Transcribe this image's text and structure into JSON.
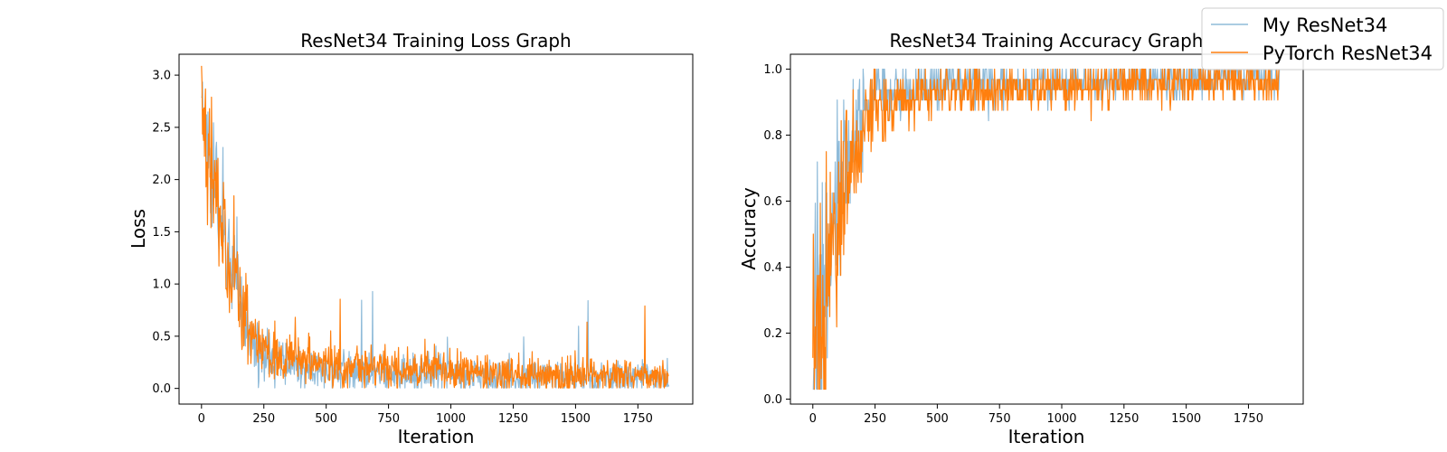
{
  "legend": {
    "entries": [
      {
        "label": "My ResNet34",
        "color": "#1f77b4",
        "alpha": 0.5
      },
      {
        "label": "PyTorch ResNet34",
        "color": "#ff7f0e",
        "alpha": 1.0
      }
    ],
    "placement": "top-right"
  },
  "chart_data": [
    {
      "type": "line",
      "title": "ResNet34 Training Loss Graph",
      "xlabel": "Iteration",
      "ylabel": "Loss",
      "xlim": [
        -90,
        1970
      ],
      "ylim": [
        -0.15,
        3.2
      ],
      "xticks": [
        0,
        250,
        500,
        750,
        1000,
        1250,
        1500,
        1750
      ],
      "yticks": [
        0.0,
        0.5,
        1.0,
        1.5,
        2.0,
        2.5,
        3.0
      ],
      "ytick_labels": [
        "0.0",
        "0.5",
        "1.0",
        "1.5",
        "2.0",
        "2.5",
        "3.0"
      ],
      "grid": false,
      "n_points": 1875,
      "series": [
        {
          "name": "My ResNet34",
          "color": "#1f77b4",
          "alpha": 0.5,
          "x": [
            0,
            25,
            50,
            75,
            100,
            150,
            200,
            250,
            300,
            400,
            500,
            750,
            1000,
            1250,
            1500,
            1750,
            1874
          ],
          "y": [
            2.7,
            2.2,
            2.0,
            1.6,
            1.3,
            0.9,
            0.45,
            0.3,
            0.25,
            0.2,
            0.17,
            0.15,
            0.12,
            0.1,
            0.1,
            0.1,
            0.1
          ]
        },
        {
          "name": "PyTorch ResNet34",
          "color": "#ff7f0e",
          "alpha": 1.0,
          "x": [
            0,
            25,
            50,
            75,
            100,
            150,
            200,
            250,
            300,
            400,
            500,
            750,
            1000,
            1250,
            1500,
            1750,
            1874
          ],
          "y": [
            2.85,
            2.2,
            2.0,
            1.6,
            1.3,
            0.95,
            0.55,
            0.38,
            0.3,
            0.25,
            0.22,
            0.2,
            0.17,
            0.14,
            0.12,
            0.12,
            0.12
          ]
        }
      ]
    },
    {
      "type": "line",
      "title": "ResNet34 Training Accuracy Graph",
      "xlabel": "Iteration",
      "ylabel": "Accuracy",
      "xlim": [
        -90,
        1970
      ],
      "ylim": [
        -0.015,
        1.045
      ],
      "xticks": [
        0,
        250,
        500,
        750,
        1000,
        1250,
        1500,
        1750
      ],
      "yticks": [
        0.0,
        0.2,
        0.4,
        0.6,
        0.8,
        1.0
      ],
      "ytick_labels": [
        "0.0",
        "0.2",
        "0.4",
        "0.6",
        "0.8",
        "1.0"
      ],
      "grid": false,
      "n_points": 1875,
      "series": [
        {
          "name": "My ResNet34",
          "color": "#1f77b4",
          "alpha": 0.5,
          "x": [
            0,
            25,
            50,
            75,
            100,
            150,
            200,
            250,
            300,
            400,
            500,
            750,
            1000,
            1250,
            1500,
            1750,
            1874
          ],
          "y": [
            0.1,
            0.2,
            0.35,
            0.45,
            0.6,
            0.75,
            0.85,
            0.9,
            0.93,
            0.94,
            0.95,
            0.96,
            0.96,
            0.97,
            0.97,
            0.97,
            0.97
          ]
        },
        {
          "name": "PyTorch ResNet34",
          "color": "#ff7f0e",
          "alpha": 1.0,
          "x": [
            0,
            25,
            50,
            75,
            100,
            150,
            200,
            250,
            300,
            400,
            500,
            750,
            1000,
            1250,
            1500,
            1750,
            1874
          ],
          "y": [
            0.08,
            0.2,
            0.3,
            0.42,
            0.55,
            0.7,
            0.8,
            0.87,
            0.9,
            0.92,
            0.93,
            0.94,
            0.95,
            0.96,
            0.96,
            0.96,
            0.96
          ]
        }
      ]
    }
  ]
}
